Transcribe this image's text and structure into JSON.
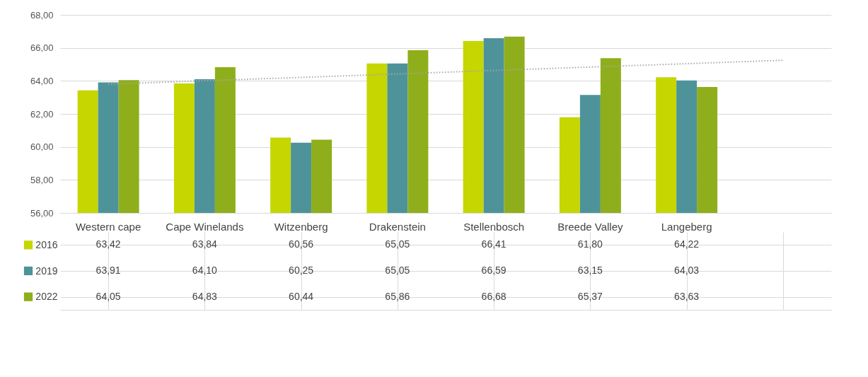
{
  "chart_data": {
    "type": "bar",
    "categories": [
      "Western cape",
      "Cape Winelands",
      "Witzenberg",
      "Drakenstein",
      "Stellenbosch",
      "Breede Valley",
      "Langeberg",
      null
    ],
    "ylim": [
      56,
      68
    ],
    "yticks": [
      {
        "value": 56,
        "label": "56,00"
      },
      {
        "value": 58,
        "label": "58,00"
      },
      {
        "value": 60,
        "label": "60,00"
      },
      {
        "value": 62,
        "label": "62,00"
      },
      {
        "value": 64,
        "label": "64,00"
      },
      {
        "value": 66,
        "label": "66,00"
      },
      {
        "value": 68,
        "label": "68,00"
      }
    ],
    "grid": "y",
    "legend": "bottom left",
    "series": [
      {
        "name": "2016",
        "color": "#c5d600",
        "values": [
          63.42,
          63.84,
          60.56,
          65.05,
          66.41,
          61.8,
          64.22,
          null
        ],
        "value_labels": [
          "63,42",
          "63,84",
          "60,56",
          "65,05",
          "66,41",
          "61,80",
          "64,22",
          null
        ]
      },
      {
        "name": "2019",
        "color": "#4e9399",
        "values": [
          63.91,
          64.1,
          60.25,
          65.05,
          66.59,
          63.15,
          64.03,
          null
        ],
        "value_labels": [
          "63,91",
          "64,10",
          "60,25",
          "65,05",
          "66,59",
          "63,15",
          "64,03",
          null
        ]
      },
      {
        "name": "2022",
        "color": "#8fae1b",
        "values": [
          64.05,
          64.83,
          60.44,
          65.86,
          66.68,
          65.37,
          63.63,
          null
        ],
        "value_labels": [
          "64,05",
          "64,83",
          "60,44",
          "65,86",
          "66,68",
          "65,37",
          "63,63",
          null
        ]
      },
      {
        "type": "line",
        "color": "#a6a6a6",
        "line_style": "dotted",
        "values": [
          63.8,
          64.01,
          64.21,
          64.42,
          64.63,
          64.84,
          65.04,
          65.25
        ]
      }
    ]
  }
}
